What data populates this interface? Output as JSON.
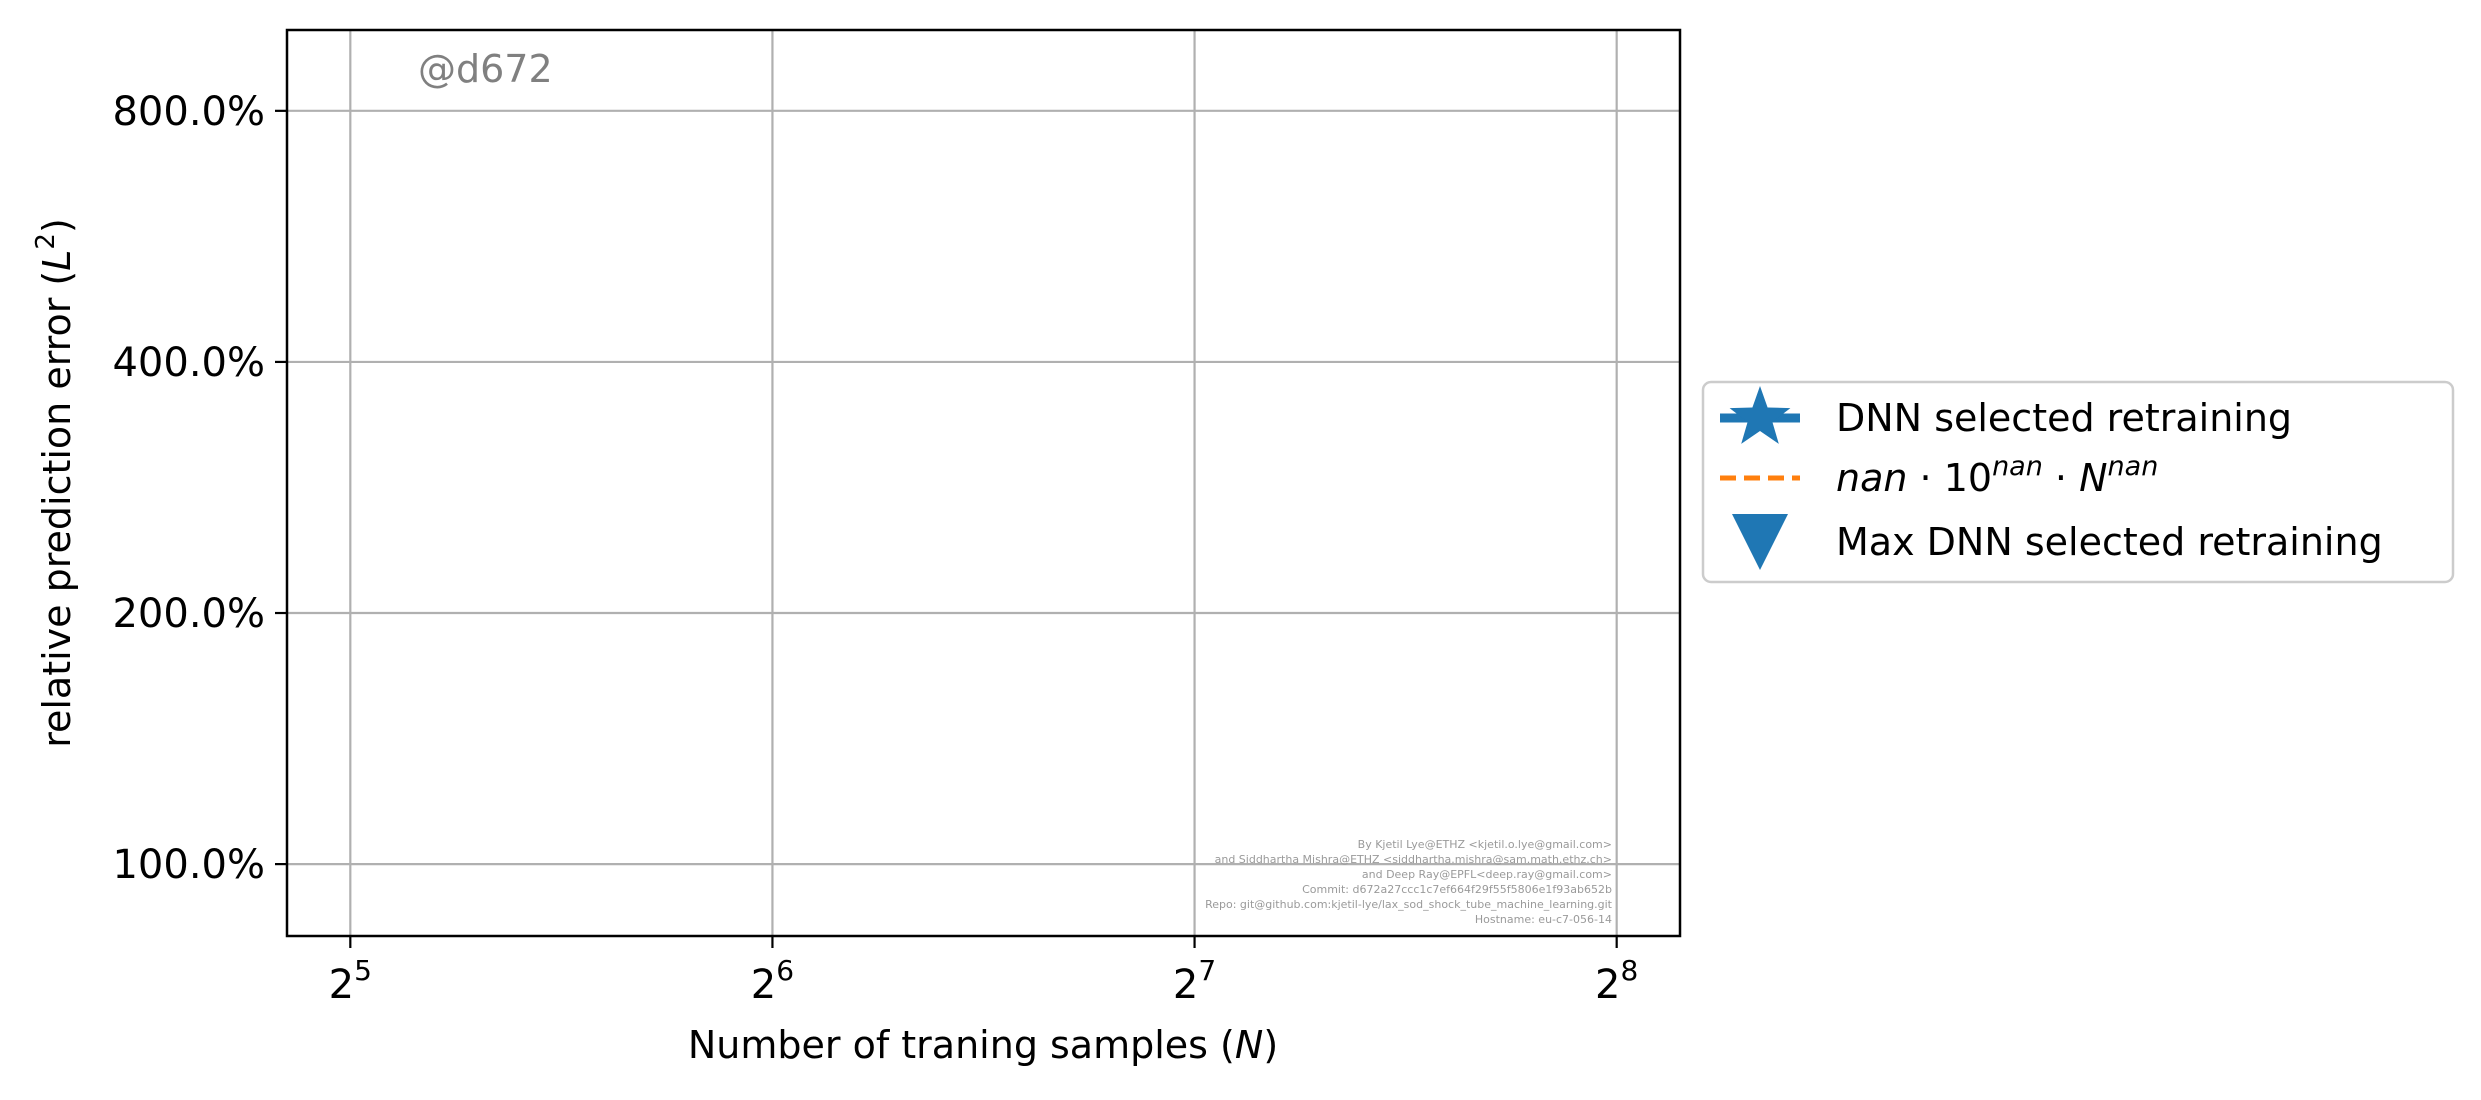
{
  "chart_data": {
    "type": "line",
    "x_scale": "log2",
    "y_scale": "log",
    "xlim_exponents": [
      4.85,
      8.15
    ],
    "ylim": [
      82,
      1000
    ],
    "xticks": [
      {
        "exp": 5,
        "base": "2",
        "sup": "5"
      },
      {
        "exp": 6,
        "base": "2",
        "sup": "6"
      },
      {
        "exp": 7,
        "base": "2",
        "sup": "7"
      },
      {
        "exp": 8,
        "base": "2",
        "sup": "8"
      }
    ],
    "yticks": [
      {
        "value": 100,
        "label": "100.0%"
      },
      {
        "value": 200,
        "label": "200.0%"
      },
      {
        "value": 400,
        "label": "400.0%"
      },
      {
        "value": 800,
        "label": "800.0%"
      }
    ],
    "grid": true,
    "xlabel": {
      "pre": "Number of traning samples (",
      "var": "N",
      "post": ")"
    },
    "ylabel": {
      "pre": "relative prediction error (",
      "var": "L",
      "sup": "2",
      "post": ")"
    },
    "legend": {
      "placement": "right-outside",
      "entries": [
        {
          "marker": "star-line",
          "color": "#1f77b4",
          "label": "DNN selected retraining"
        },
        {
          "marker": "dashed-line",
          "color": "#ff7f0e",
          "parts": [
            "nan",
            "· 10",
            "nan",
            "· ",
            "N",
            "nan"
          ]
        },
        {
          "marker": "triangle-down",
          "color": "#1f77b4",
          "label": "Max DNN selected retraining"
        }
      ]
    },
    "series": [
      {
        "name": "DNN selected retraining",
        "x": [],
        "y": []
      },
      {
        "name": "Max DNN selected retraining",
        "x": [],
        "y": []
      }
    ]
  },
  "watermark": "@d672",
  "credits": [
    "By Kjetil Lye@ETHZ <kjetil.o.lye@gmail.com>",
    "and Siddhartha Mishra@ETHZ <siddhartha.mishra@sam.math.ethz.ch>",
    "and Deep Ray@EPFL<deep.ray@gmail.com>",
    "Commit: d672a27ccc1c7ef664f29f55f5806e1f93ab652b",
    "Repo: git@github.com:kjetil-lye/lax_sod_shock_tube_machine_learning.git",
    "Hostname: eu-c7-056-14"
  ],
  "colors": {
    "blue": "#1f77b4",
    "orange": "#ff7f0e",
    "grid": "#b0b0b0"
  }
}
